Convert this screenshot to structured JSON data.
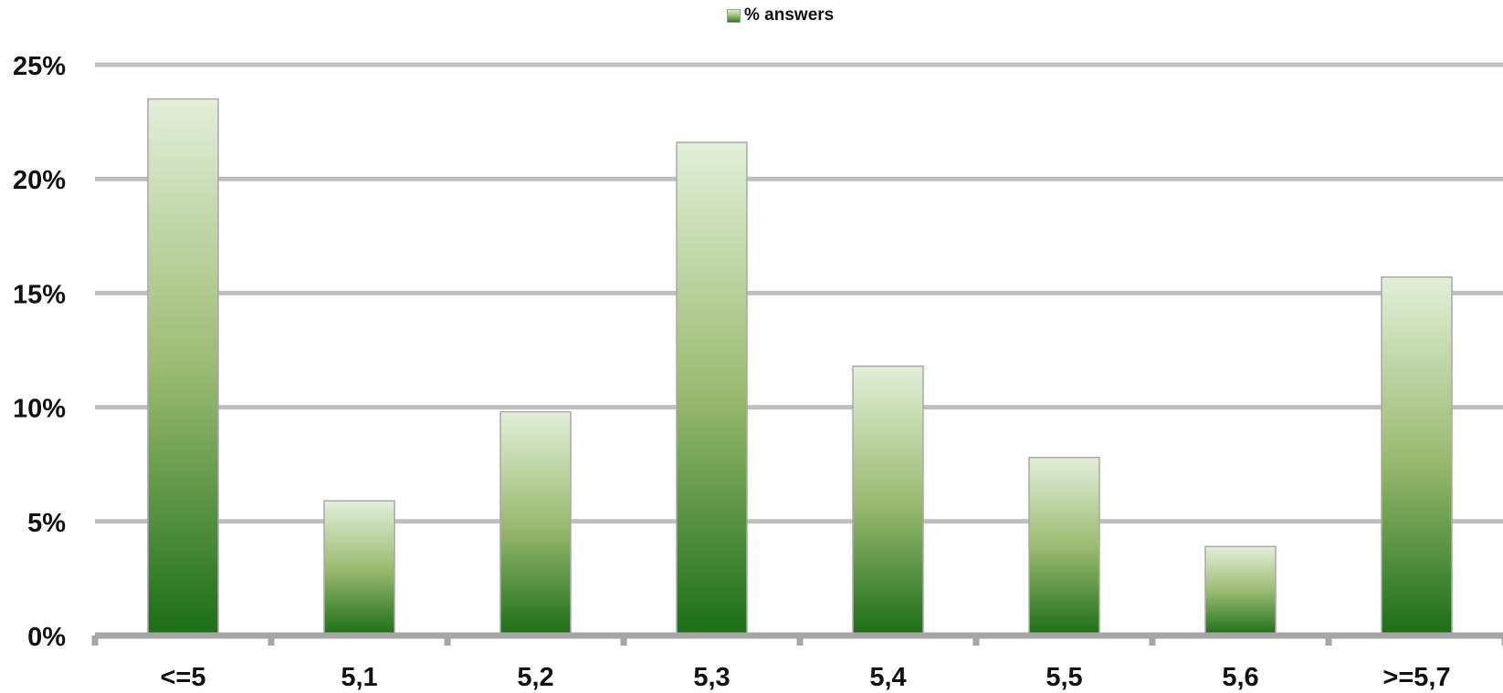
{
  "chart_data": {
    "type": "bar",
    "categories": [
      "<=5",
      "5,1",
      "5,2",
      "5,3",
      "5,4",
      "5,5",
      "5,6",
      ">=5,7"
    ],
    "series": [
      {
        "name": "% answers",
        "values": [
          23.5,
          5.9,
          9.8,
          21.6,
          11.8,
          7.8,
          3.9,
          15.7
        ]
      }
    ],
    "ylim": [
      0,
      25
    ],
    "yticks": [
      "0%",
      "5%",
      "10%",
      "15%",
      "20%",
      "25%"
    ],
    "ytick_values": [
      0,
      5,
      10,
      15,
      20,
      25
    ],
    "grid": true,
    "legend_position": "top-center",
    "colors": {
      "bar_top": "#e2efd9",
      "bar_mid": "#9cbb72",
      "bar_bottom": "#1b6e16",
      "gridline": "#bfbfbf",
      "axis": "#a6a6a6"
    }
  }
}
